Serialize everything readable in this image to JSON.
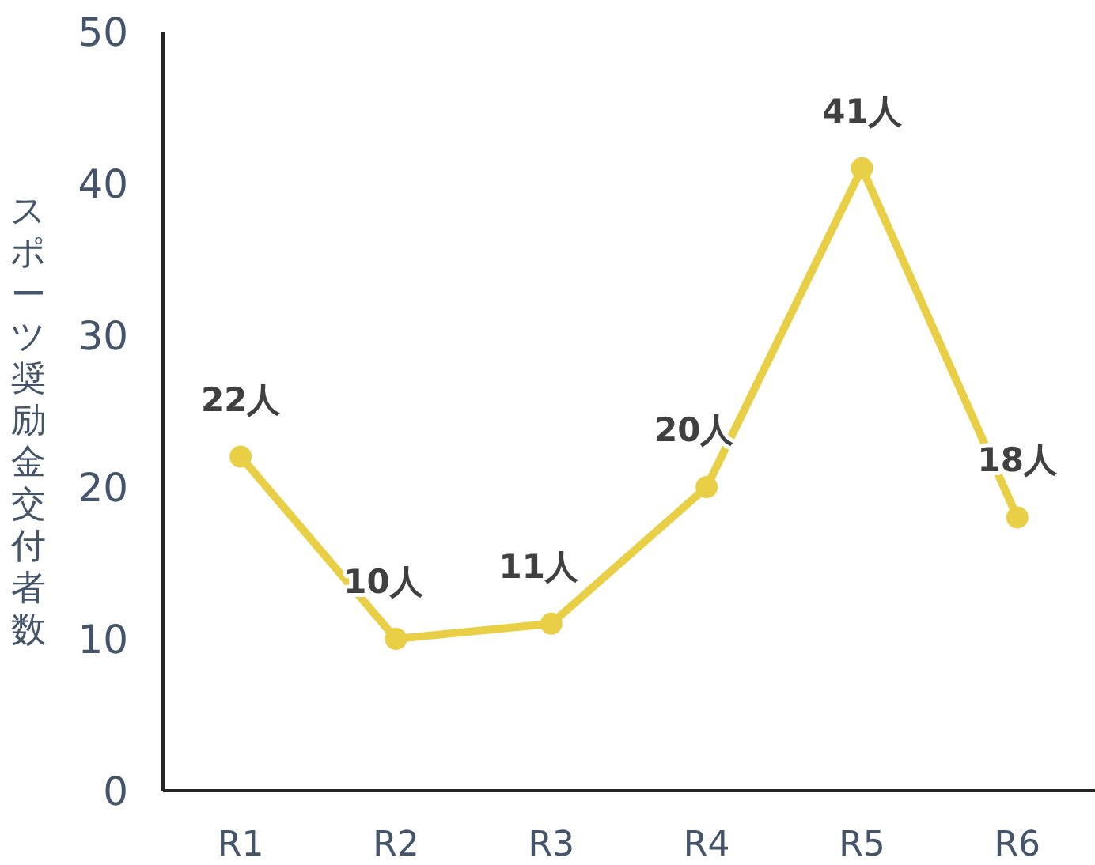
{
  "chart_data": {
    "type": "line",
    "ylabel": "スポーツ奨励金交付者数",
    "categories": [
      "R1",
      "R2",
      "R3",
      "R4",
      "R5",
      "R6"
    ],
    "series": [
      {
        "color": "#e8cf45",
        "values": [
          22,
          10,
          11,
          20,
          41,
          18
        ],
        "value_labels": [
          "22人",
          "10人",
          "11人",
          "20人",
          "41人",
          "18人"
        ]
      }
    ],
    "ylim": [
      0,
      50
    ],
    "yticks": [
      0,
      10,
      20,
      30,
      40,
      50
    ],
    "marker": "circle",
    "line_style": "solid"
  }
}
